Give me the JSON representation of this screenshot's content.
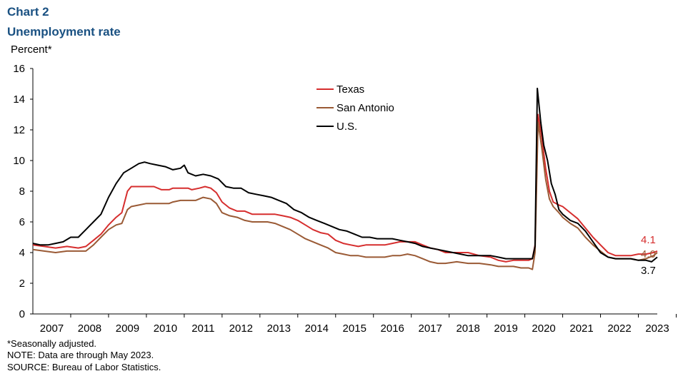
{
  "header": {
    "chart_number": "Chart 2",
    "subtitle": "Unemployment rate"
  },
  "notes": {
    "footnote": "*Seasonally adjusted.",
    "note": "NOTE: Data are through May 2023.",
    "source": "SOURCE: Bureau of Labor Statistics."
  },
  "colors": {
    "texas": "#d62e2e",
    "san_antonio": "#9a5a35",
    "us": "#000000",
    "title": "#1a5182"
  },
  "chart_data": {
    "type": "line",
    "title": "Unemployment rate",
    "ylabel": "Percent*",
    "xlabel": "",
    "ylim": [
      0,
      16
    ],
    "yticks": [
      0,
      2,
      4,
      6,
      8,
      10,
      12,
      14,
      16
    ],
    "xlim": [
      2007.0,
      2023.5
    ],
    "xtick_labels": [
      "2007",
      "2008",
      "2009",
      "2010",
      "2011",
      "2012",
      "2013",
      "2014",
      "2015",
      "2016",
      "2017",
      "2018",
      "2019",
      "2020",
      "2021",
      "2022",
      "2023"
    ],
    "legend": {
      "placement": "top-center",
      "entries": [
        "Texas",
        "San Antonio",
        "U.S."
      ]
    },
    "end_labels": {
      "texas": "4.1",
      "san_antonio": "4.0",
      "us": "3.7"
    },
    "series": [
      {
        "key": "texas",
        "name": "Texas",
        "points": [
          [
            2007.0,
            4.5
          ],
          [
            2007.3,
            4.4
          ],
          [
            2007.6,
            4.3
          ],
          [
            2007.9,
            4.4
          ],
          [
            2008.2,
            4.3
          ],
          [
            2008.4,
            4.4
          ],
          [
            2008.6,
            4.8
          ],
          [
            2008.8,
            5.2
          ],
          [
            2009.0,
            5.8
          ],
          [
            2009.2,
            6.3
          ],
          [
            2009.35,
            6.6
          ],
          [
            2009.5,
            8.0
          ],
          [
            2009.6,
            8.3
          ],
          [
            2009.8,
            8.3
          ],
          [
            2010.0,
            8.3
          ],
          [
            2010.2,
            8.3
          ],
          [
            2010.4,
            8.1
          ],
          [
            2010.6,
            8.1
          ],
          [
            2010.7,
            8.2
          ],
          [
            2010.9,
            8.2
          ],
          [
            2011.1,
            8.2
          ],
          [
            2011.2,
            8.1
          ],
          [
            2011.4,
            8.2
          ],
          [
            2011.55,
            8.3
          ],
          [
            2011.7,
            8.2
          ],
          [
            2011.85,
            7.9
          ],
          [
            2012.0,
            7.3
          ],
          [
            2012.2,
            6.9
          ],
          [
            2012.4,
            6.7
          ],
          [
            2012.6,
            6.7
          ],
          [
            2012.8,
            6.5
          ],
          [
            2013.0,
            6.5
          ],
          [
            2013.2,
            6.5
          ],
          [
            2013.4,
            6.5
          ],
          [
            2013.6,
            6.4
          ],
          [
            2013.8,
            6.3
          ],
          [
            2014.0,
            6.1
          ],
          [
            2014.2,
            5.8
          ],
          [
            2014.4,
            5.5
          ],
          [
            2014.6,
            5.3
          ],
          [
            2014.8,
            5.2
          ],
          [
            2015.0,
            4.8
          ],
          [
            2015.2,
            4.6
          ],
          [
            2015.4,
            4.5
          ],
          [
            2015.6,
            4.4
          ],
          [
            2015.8,
            4.5
          ],
          [
            2016.0,
            4.5
          ],
          [
            2016.3,
            4.5
          ],
          [
            2016.5,
            4.6
          ],
          [
            2016.7,
            4.7
          ],
          [
            2016.9,
            4.7
          ],
          [
            2017.1,
            4.7
          ],
          [
            2017.3,
            4.5
          ],
          [
            2017.5,
            4.3
          ],
          [
            2017.7,
            4.2
          ],
          [
            2017.9,
            4.0
          ],
          [
            2018.2,
            4.0
          ],
          [
            2018.5,
            4.0
          ],
          [
            2018.8,
            3.8
          ],
          [
            2019.1,
            3.7
          ],
          [
            2019.3,
            3.5
          ],
          [
            2019.5,
            3.4
          ],
          [
            2019.7,
            3.5
          ],
          [
            2019.9,
            3.5
          ],
          [
            2020.1,
            3.5
          ],
          [
            2020.2,
            3.6
          ],
          [
            2020.27,
            4.5
          ],
          [
            2020.35,
            13.0
          ],
          [
            2020.45,
            11.5
          ],
          [
            2020.55,
            9.5
          ],
          [
            2020.65,
            8.0
          ],
          [
            2020.75,
            7.3
          ],
          [
            2020.9,
            7.1
          ],
          [
            2021.0,
            7.0
          ],
          [
            2021.2,
            6.6
          ],
          [
            2021.4,
            6.2
          ],
          [
            2021.6,
            5.6
          ],
          [
            2021.8,
            5.0
          ],
          [
            2022.0,
            4.5
          ],
          [
            2022.2,
            4.0
          ],
          [
            2022.4,
            3.8
          ],
          [
            2022.6,
            3.8
          ],
          [
            2022.8,
            3.8
          ],
          [
            2023.0,
            3.9
          ],
          [
            2023.2,
            3.9
          ],
          [
            2023.4,
            4.0
          ],
          [
            2023.5,
            4.1
          ]
        ]
      },
      {
        "key": "san_antonio",
        "name": "San Antonio",
        "points": [
          [
            2007.0,
            4.2
          ],
          [
            2007.3,
            4.1
          ],
          [
            2007.6,
            4.0
          ],
          [
            2007.9,
            4.1
          ],
          [
            2008.2,
            4.1
          ],
          [
            2008.4,
            4.1
          ],
          [
            2008.6,
            4.5
          ],
          [
            2008.8,
            5.0
          ],
          [
            2009.0,
            5.5
          ],
          [
            2009.2,
            5.8
          ],
          [
            2009.35,
            5.9
          ],
          [
            2009.5,
            6.8
          ],
          [
            2009.6,
            7.0
          ],
          [
            2009.8,
            7.1
          ],
          [
            2010.0,
            7.2
          ],
          [
            2010.2,
            7.2
          ],
          [
            2010.4,
            7.2
          ],
          [
            2010.6,
            7.2
          ],
          [
            2010.7,
            7.3
          ],
          [
            2010.9,
            7.4
          ],
          [
            2011.1,
            7.4
          ],
          [
            2011.3,
            7.4
          ],
          [
            2011.5,
            7.6
          ],
          [
            2011.7,
            7.5
          ],
          [
            2011.85,
            7.2
          ],
          [
            2012.0,
            6.6
          ],
          [
            2012.2,
            6.4
          ],
          [
            2012.4,
            6.3
          ],
          [
            2012.6,
            6.1
          ],
          [
            2012.8,
            6.0
          ],
          [
            2013.0,
            6.0
          ],
          [
            2013.2,
            6.0
          ],
          [
            2013.4,
            5.9
          ],
          [
            2013.6,
            5.7
          ],
          [
            2013.8,
            5.5
          ],
          [
            2014.0,
            5.2
          ],
          [
            2014.2,
            4.9
          ],
          [
            2014.4,
            4.7
          ],
          [
            2014.6,
            4.5
          ],
          [
            2014.8,
            4.3
          ],
          [
            2015.0,
            4.0
          ],
          [
            2015.2,
            3.9
          ],
          [
            2015.4,
            3.8
          ],
          [
            2015.6,
            3.8
          ],
          [
            2015.8,
            3.7
          ],
          [
            2016.0,
            3.7
          ],
          [
            2016.3,
            3.7
          ],
          [
            2016.5,
            3.8
          ],
          [
            2016.7,
            3.8
          ],
          [
            2016.9,
            3.9
          ],
          [
            2017.1,
            3.8
          ],
          [
            2017.3,
            3.6
          ],
          [
            2017.5,
            3.4
          ],
          [
            2017.7,
            3.3
          ],
          [
            2017.9,
            3.3
          ],
          [
            2018.2,
            3.4
          ],
          [
            2018.5,
            3.3
          ],
          [
            2018.8,
            3.3
          ],
          [
            2019.1,
            3.2
          ],
          [
            2019.3,
            3.1
          ],
          [
            2019.5,
            3.1
          ],
          [
            2019.7,
            3.1
          ],
          [
            2019.9,
            3.0
          ],
          [
            2020.1,
            3.0
          ],
          [
            2020.2,
            2.9
          ],
          [
            2020.27,
            4.0
          ],
          [
            2020.35,
            12.5
          ],
          [
            2020.45,
            10.8
          ],
          [
            2020.55,
            8.8
          ],
          [
            2020.65,
            7.5
          ],
          [
            2020.75,
            7.0
          ],
          [
            2020.9,
            6.6
          ],
          [
            2021.0,
            6.3
          ],
          [
            2021.2,
            5.9
          ],
          [
            2021.4,
            5.6
          ],
          [
            2021.6,
            5.0
          ],
          [
            2021.8,
            4.5
          ],
          [
            2022.0,
            4.1
          ],
          [
            2022.2,
            3.7
          ],
          [
            2022.4,
            3.6
          ],
          [
            2022.6,
            3.6
          ],
          [
            2022.8,
            3.6
          ],
          [
            2023.0,
            3.5
          ],
          [
            2023.2,
            3.6
          ],
          [
            2023.4,
            3.8
          ],
          [
            2023.5,
            4.0
          ]
        ]
      },
      {
        "key": "us",
        "name": "U.S.",
        "points": [
          [
            2007.0,
            4.6
          ],
          [
            2007.2,
            4.5
          ],
          [
            2007.4,
            4.5
          ],
          [
            2007.6,
            4.6
          ],
          [
            2007.8,
            4.7
          ],
          [
            2008.0,
            5.0
          ],
          [
            2008.2,
            5.0
          ],
          [
            2008.4,
            5.5
          ],
          [
            2008.6,
            6.0
          ],
          [
            2008.8,
            6.5
          ],
          [
            2009.0,
            7.6
          ],
          [
            2009.2,
            8.5
          ],
          [
            2009.4,
            9.2
          ],
          [
            2009.6,
            9.5
          ],
          [
            2009.8,
            9.8
          ],
          [
            2009.95,
            9.9
          ],
          [
            2010.1,
            9.8
          ],
          [
            2010.3,
            9.7
          ],
          [
            2010.5,
            9.6
          ],
          [
            2010.7,
            9.4
          ],
          [
            2010.9,
            9.5
          ],
          [
            2011.0,
            9.7
          ],
          [
            2011.1,
            9.2
          ],
          [
            2011.3,
            9.0
          ],
          [
            2011.5,
            9.1
          ],
          [
            2011.7,
            9.0
          ],
          [
            2011.9,
            8.8
          ],
          [
            2012.1,
            8.3
          ],
          [
            2012.3,
            8.2
          ],
          [
            2012.5,
            8.2
          ],
          [
            2012.7,
            7.9
          ],
          [
            2012.9,
            7.8
          ],
          [
            2013.1,
            7.7
          ],
          [
            2013.3,
            7.6
          ],
          [
            2013.5,
            7.4
          ],
          [
            2013.7,
            7.2
          ],
          [
            2013.9,
            6.8
          ],
          [
            2014.1,
            6.6
          ],
          [
            2014.3,
            6.3
          ],
          [
            2014.5,
            6.1
          ],
          [
            2014.7,
            5.9
          ],
          [
            2014.9,
            5.7
          ],
          [
            2015.1,
            5.5
          ],
          [
            2015.3,
            5.4
          ],
          [
            2015.5,
            5.2
          ],
          [
            2015.7,
            5.0
          ],
          [
            2015.9,
            5.0
          ],
          [
            2016.1,
            4.9
          ],
          [
            2016.3,
            4.9
          ],
          [
            2016.5,
            4.9
          ],
          [
            2016.7,
            4.8
          ],
          [
            2016.9,
            4.7
          ],
          [
            2017.1,
            4.6
          ],
          [
            2017.3,
            4.4
          ],
          [
            2017.5,
            4.3
          ],
          [
            2017.7,
            4.2
          ],
          [
            2017.9,
            4.1
          ],
          [
            2018.1,
            4.0
          ],
          [
            2018.3,
            3.9
          ],
          [
            2018.5,
            3.8
          ],
          [
            2018.7,
            3.8
          ],
          [
            2018.9,
            3.8
          ],
          [
            2019.1,
            3.8
          ],
          [
            2019.3,
            3.7
          ],
          [
            2019.5,
            3.6
          ],
          [
            2019.7,
            3.6
          ],
          [
            2019.9,
            3.6
          ],
          [
            2020.1,
            3.6
          ],
          [
            2020.2,
            3.6
          ],
          [
            2020.27,
            4.4
          ],
          [
            2020.33,
            14.7
          ],
          [
            2020.42,
            12.5
          ],
          [
            2020.5,
            11.0
          ],
          [
            2020.6,
            10.0
          ],
          [
            2020.7,
            8.5
          ],
          [
            2020.8,
            7.8
          ],
          [
            2020.9,
            6.8
          ],
          [
            2021.0,
            6.5
          ],
          [
            2021.2,
            6.1
          ],
          [
            2021.4,
            5.9
          ],
          [
            2021.6,
            5.4
          ],
          [
            2021.8,
            4.7
          ],
          [
            2022.0,
            4.0
          ],
          [
            2022.2,
            3.7
          ],
          [
            2022.4,
            3.6
          ],
          [
            2022.6,
            3.6
          ],
          [
            2022.8,
            3.6
          ],
          [
            2023.0,
            3.5
          ],
          [
            2023.2,
            3.5
          ],
          [
            2023.35,
            3.4
          ],
          [
            2023.5,
            3.7
          ]
        ]
      }
    ]
  }
}
